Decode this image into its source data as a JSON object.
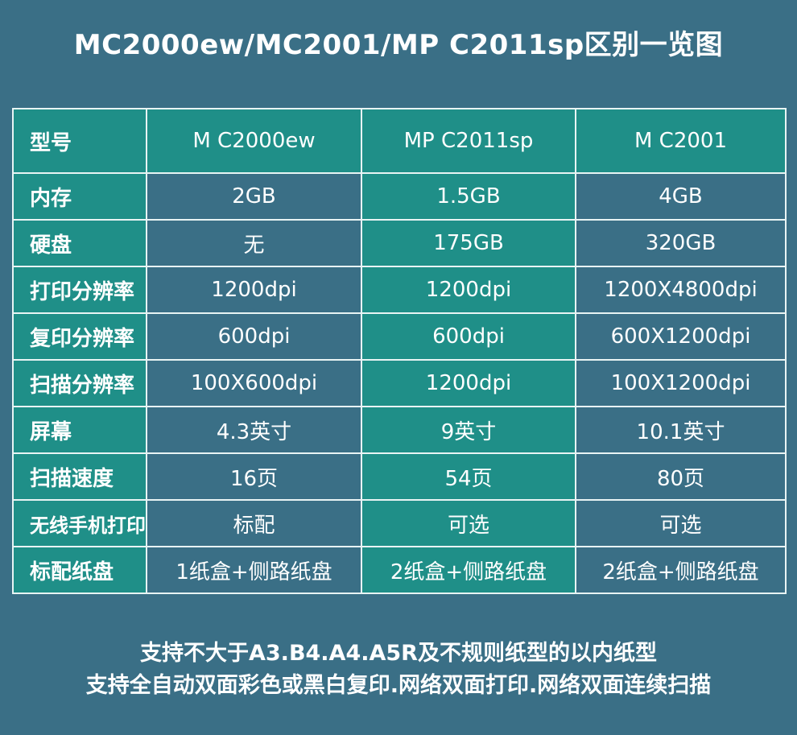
{
  "title": "MC2000ew/MC2001/MP C2011sp区别一览图",
  "table": {
    "header": {
      "label": "型号",
      "models": [
        "M C2000ew",
        "MP C2011sp",
        "M C2001"
      ]
    },
    "rows": [
      {
        "label": "内存",
        "values": [
          "2GB",
          "1.5GB",
          "4GB"
        ]
      },
      {
        "label": "硬盘",
        "values": [
          "无",
          "175GB",
          "320GB"
        ]
      },
      {
        "label": "打印分辨率",
        "values": [
          "1200dpi",
          "1200dpi",
          "1200X4800dpi"
        ]
      },
      {
        "label": "复印分辨率",
        "values": [
          "600dpi",
          "600dpi",
          "600X1200dpi"
        ]
      },
      {
        "label": "扫描分辨率",
        "values": [
          "100X600dpi",
          "1200dpi",
          "100X1200dpi"
        ]
      },
      {
        "label": "屏幕",
        "values": [
          "4.3英寸",
          "9英寸",
          "10.1英寸"
        ]
      },
      {
        "label": "扫描速度",
        "values": [
          "16页",
          "54页",
          "80页"
        ]
      },
      {
        "label": "无线手机打印",
        "values": [
          "标配",
          "可选",
          "可选"
        ]
      },
      {
        "label": "标配纸盘",
        "values": [
          "1纸盒+侧路纸盘",
          "2纸盒+侧路纸盘",
          "2纸盒+侧路纸盘"
        ]
      }
    ]
  },
  "footer": {
    "line1": "支持不大于A3.B4.A4.A5R及不规则纸型的以内纸型",
    "line2": "支持全自动双面彩色或黑白复印.网络双面打印.网络双面连续扫描"
  },
  "colors": {
    "background": "#3a6f86",
    "teal": "#1f8f88",
    "border": "#e8f4f4",
    "text": "#ffffff"
  }
}
